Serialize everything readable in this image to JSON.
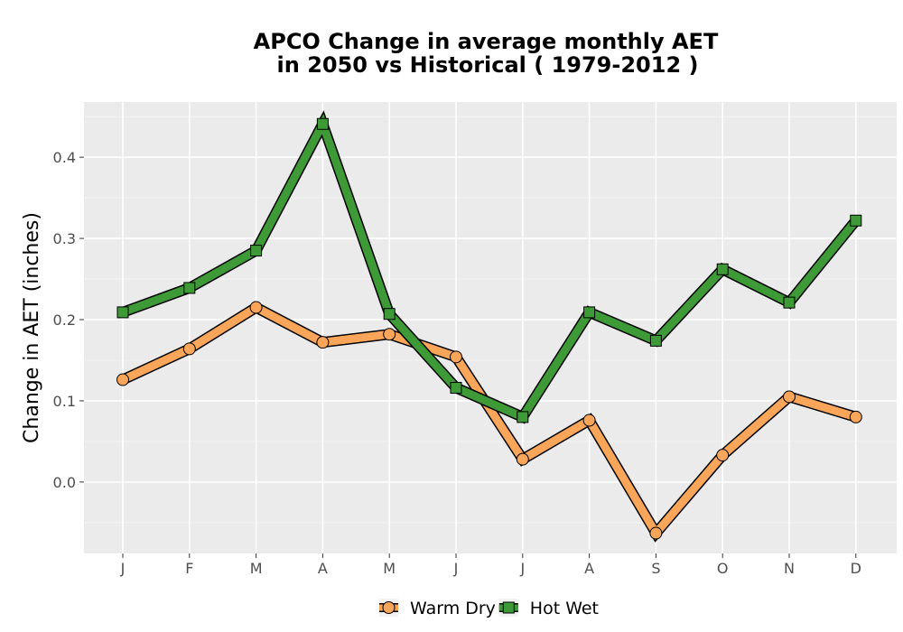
{
  "chart_data": {
    "type": "line",
    "title": "APCO  Change in average monthly AET",
    "subtitle": "in 2050 vs Historical ( 1979-2012 )",
    "xlabel": "",
    "ylabel": "Change in AET (inches)",
    "categories": [
      "J",
      "F",
      "M",
      "A",
      "M",
      "J",
      "J",
      "A",
      "S",
      "O",
      "N",
      "D"
    ],
    "ylim": [
      -0.088,
      0.468
    ],
    "yticks": [
      0.0,
      0.1,
      0.2,
      0.3,
      0.4
    ],
    "ytick_labels": [
      "0.0",
      "0.1",
      "0.2",
      "0.3",
      "0.4"
    ],
    "grid": true,
    "legend_position": "bottom",
    "series": [
      {
        "name": "Warm Dry",
        "color": "#f9a65a",
        "marker": "circle",
        "values": [
          0.126,
          0.164,
          0.215,
          0.172,
          0.182,
          0.154,
          0.028,
          0.076,
          -0.063,
          0.033,
          0.105,
          0.08
        ]
      },
      {
        "name": "Hot Wet",
        "color": "#3e9a37",
        "marker": "square",
        "values": [
          0.209,
          0.239,
          0.285,
          0.441,
          0.207,
          0.116,
          0.08,
          0.209,
          0.174,
          0.262,
          0.221,
          0.322
        ]
      }
    ]
  }
}
